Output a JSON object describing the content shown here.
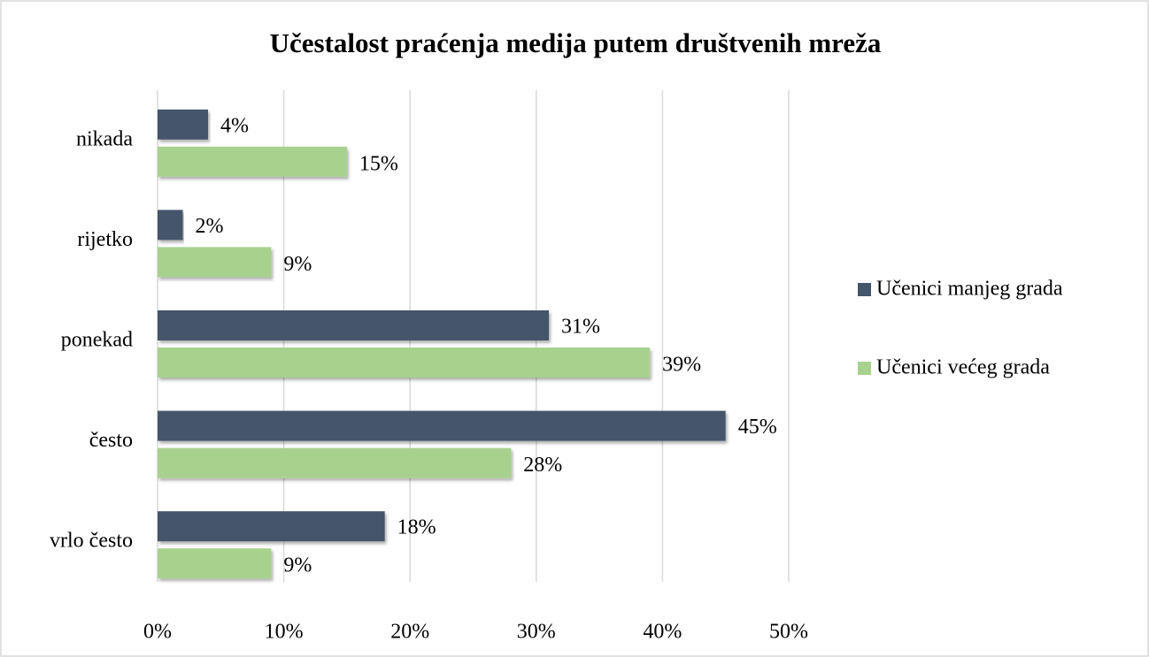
{
  "chart_data": {
    "type": "bar",
    "orientation": "horizontal",
    "title": "Učestalost praćenja medija putem društvenih mreža",
    "categories": [
      "nikada",
      "rijetko",
      "ponekad",
      "često",
      "vrlo često"
    ],
    "series": [
      {
        "name": "Učenici manjeg grada",
        "color": "#44546a",
        "values": [
          4,
          2,
          31,
          45,
          18
        ],
        "value_labels": [
          "4%",
          "2%",
          "31%",
          "45%",
          "18%"
        ]
      },
      {
        "name": "Učenici većeg grada",
        "color": "#a9d18e",
        "values": [
          15,
          9,
          39,
          28,
          9
        ],
        "value_labels": [
          "15%",
          "9%",
          "39%",
          "28%",
          "9%"
        ]
      }
    ],
    "xlim": [
      0,
      50
    ],
    "xticks": [
      {
        "value": 0,
        "label": "0%"
      },
      {
        "value": 10,
        "label": "10%"
      },
      {
        "value": 20,
        "label": "20%"
      },
      {
        "value": 30,
        "label": "30%"
      },
      {
        "value": 40,
        "label": "40%"
      },
      {
        "value": 50,
        "label": "50%"
      }
    ],
    "grid": true,
    "legend": "right"
  }
}
